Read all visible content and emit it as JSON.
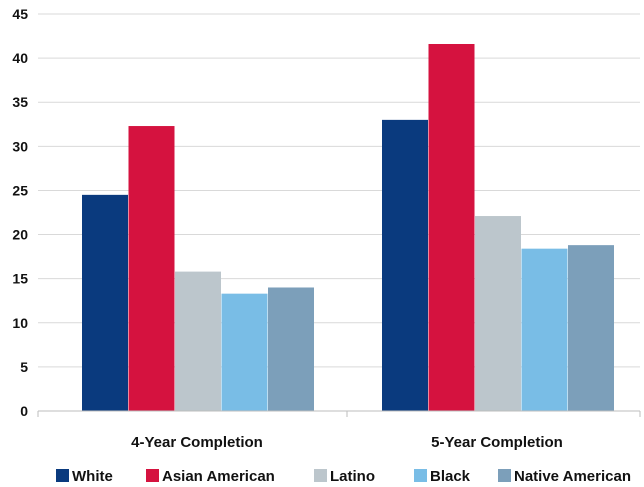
{
  "chart_data": {
    "type": "bar",
    "categories": [
      "4-Year Completion",
      "5-Year Completion"
    ],
    "series": [
      {
        "name": "White",
        "values": [
          24.5,
          33.0
        ],
        "color": "#0a3a7e"
      },
      {
        "name": "Asian American",
        "values": [
          32.3,
          41.6
        ],
        "color": "#d5123f"
      },
      {
        "name": "Latino",
        "values": [
          15.8,
          22.1
        ],
        "color": "#bcc6cc"
      },
      {
        "name": "Black",
        "values": [
          13.3,
          18.4
        ],
        "color": "#79bde6"
      },
      {
        "name": "Native American",
        "values": [
          14.0,
          18.8
        ],
        "color": "#7c9fba"
      }
    ],
    "ylim": [
      0,
      45
    ],
    "yticks": [
      "0",
      "5",
      "10",
      "15",
      "20",
      "25",
      "30",
      "35",
      "40",
      "45"
    ],
    "grid": true,
    "legend_position": "bottom"
  }
}
